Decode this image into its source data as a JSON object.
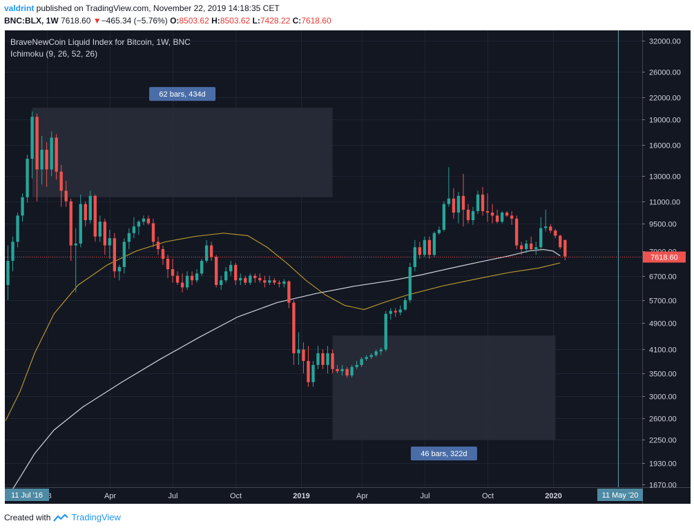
{
  "header": {
    "user": "valdrint",
    "published_text": " published on TradingView.com, November 22, 2019 14:18:35 CET",
    "symbol": "BNC:BLX, 1W",
    "last": "7618.60",
    "arrow": "▼",
    "change": "−465.34 (−5.76%)",
    "o_label": "O:",
    "o_value": "8503.62",
    "h_label": "H:",
    "h_value": "8503.62",
    "l_label": "L:",
    "l_value": "7428.22",
    "c_label": "C:",
    "c_value": "7618.60"
  },
  "footer": {
    "created_with": "Created with",
    "brand": "TradingView"
  },
  "colors": {
    "background": "#131722",
    "up": "#26a69a",
    "down": "#ef5350",
    "sma_white": "#d1d4dc",
    "sma_gold": "#b2952f",
    "price_line": "#ef5350",
    "box": "#2a2e39",
    "label_bg": "#4a6da7"
  },
  "chart_data": {
    "type": "candlestick",
    "title": "BraveNewCoin Liquid Index for Bitcoin, 1W, BNC",
    "indicator": "Ichimoku (9, 26, 52, 26)",
    "y_scale": "log",
    "ylim": [
      1670,
      34000
    ],
    "y_ticks": [
      32000,
      26000,
      22000,
      19000,
      16000,
      13000,
      11000,
      9500,
      7900,
      6700,
      5700,
      4900,
      4100,
      3500,
      3000,
      2600,
      2250,
      1930,
      1670
    ],
    "y_tick_labels": [
      "32000.00",
      "26000.00",
      "22000.00",
      "19000.00",
      "16000.00",
      "13000.00",
      "11000.00",
      "9500.00",
      "7900.00",
      "6700.00",
      "5700.00",
      "4900.00",
      "4100.00",
      "3500.00",
      "3000.00",
      "2600.00",
      "2250.00",
      "1930.00",
      "1670.00"
    ],
    "x_ticks": [
      "18",
      "Apr",
      "Jul",
      "Oct",
      "2019",
      "Apr",
      "Jul",
      "Oct",
      "2020"
    ],
    "x_tick_weeks": [
      8.5,
      21.5,
      34.5,
      47.5,
      61,
      73.5,
      86.5,
      99.5,
      113
    ],
    "x_range_weeks": [
      0,
      130
    ],
    "x_start_label": "11 Jul '16",
    "x_end_label": "11 May '20",
    "current_price_label": "7618.60",
    "ranges": [
      {
        "label": "62 bars, 434d",
        "week_start": 5.5,
        "week_end": 67.5,
        "price_low": 11300,
        "price_high": 20500,
        "label_pos": "top"
      },
      {
        "label": "46 bars, 322d",
        "week_start": 67.5,
        "week_end": 113.5,
        "price_low": 2250,
        "price_high": 4500,
        "label_pos": "bottom"
      }
    ],
    "candles": [
      {
        "o": 6300,
        "h": 8200,
        "l": 5700,
        "c": 7400
      },
      {
        "o": 7400,
        "h": 8700,
        "l": 6900,
        "c": 8400
      },
      {
        "o": 8400,
        "h": 10200,
        "l": 8100,
        "c": 10000
      },
      {
        "o": 10000,
        "h": 11600,
        "l": 9600,
        "c": 11300
      },
      {
        "o": 11300,
        "h": 15000,
        "l": 10900,
        "c": 14600
      },
      {
        "o": 14600,
        "h": 20000,
        "l": 12800,
        "c": 19300
      },
      {
        "o": 19300,
        "h": 19700,
        "l": 11000,
        "c": 13600
      },
      {
        "o": 13600,
        "h": 17000,
        "l": 12300,
        "c": 15500
      },
      {
        "o": 15500,
        "h": 16300,
        "l": 12100,
        "c": 13600
      },
      {
        "o": 13600,
        "h": 17500,
        "l": 13000,
        "c": 16800
      },
      {
        "o": 16800,
        "h": 17200,
        "l": 12700,
        "c": 13400
      },
      {
        "o": 13400,
        "h": 14000,
        "l": 10600,
        "c": 11800
      },
      {
        "o": 11800,
        "h": 12600,
        "l": 10600,
        "c": 11000
      },
      {
        "o": 11000,
        "h": 11200,
        "l": 7400,
        "c": 8200
      },
      {
        "o": 8200,
        "h": 9200,
        "l": 6000,
        "c": 8300
      },
      {
        "o": 8300,
        "h": 11500,
        "l": 8100,
        "c": 10800
      },
      {
        "o": 10800,
        "h": 11000,
        "l": 9300,
        "c": 9700
      },
      {
        "o": 9700,
        "h": 11800,
        "l": 9500,
        "c": 11400
      },
      {
        "o": 11400,
        "h": 11500,
        "l": 8400,
        "c": 8700
      },
      {
        "o": 8700,
        "h": 10000,
        "l": 8400,
        "c": 9600
      },
      {
        "o": 9600,
        "h": 9800,
        "l": 7700,
        "c": 8200
      },
      {
        "o": 8200,
        "h": 9100,
        "l": 7500,
        "c": 8600
      },
      {
        "o": 8600,
        "h": 8900,
        "l": 6600,
        "c": 6900
      },
      {
        "o": 6900,
        "h": 7200,
        "l": 6500,
        "c": 7100
      },
      {
        "o": 7100,
        "h": 8600,
        "l": 6800,
        "c": 8400
      },
      {
        "o": 8400,
        "h": 9200,
        "l": 8000,
        "c": 8900
      },
      {
        "o": 8900,
        "h": 9900,
        "l": 8600,
        "c": 9300
      },
      {
        "o": 9300,
        "h": 9700,
        "l": 8800,
        "c": 9600
      },
      {
        "o": 9600,
        "h": 10000,
        "l": 9400,
        "c": 9800
      },
      {
        "o": 9800,
        "h": 10000,
        "l": 9400,
        "c": 9500
      },
      {
        "o": 9500,
        "h": 9800,
        "l": 8100,
        "c": 8400
      },
      {
        "o": 8400,
        "h": 8700,
        "l": 7700,
        "c": 8000
      },
      {
        "o": 8000,
        "h": 8200,
        "l": 7200,
        "c": 7500
      },
      {
        "o": 7500,
        "h": 7700,
        "l": 6600,
        "c": 7000
      },
      {
        "o": 7000,
        "h": 7500,
        "l": 6400,
        "c": 6700
      },
      {
        "o": 6700,
        "h": 6900,
        "l": 6300,
        "c": 6400
      },
      {
        "o": 6400,
        "h": 6800,
        "l": 6000,
        "c": 6200
      },
      {
        "o": 6200,
        "h": 6900,
        "l": 6100,
        "c": 6700
      },
      {
        "o": 6700,
        "h": 6900,
        "l": 6300,
        "c": 6500
      },
      {
        "o": 6500,
        "h": 7000,
        "l": 6400,
        "c": 6800
      },
      {
        "o": 6800,
        "h": 7500,
        "l": 6700,
        "c": 7400
      },
      {
        "o": 7400,
        "h": 8500,
        "l": 7300,
        "c": 8200
      },
      {
        "o": 8200,
        "h": 8400,
        "l": 7400,
        "c": 7600
      },
      {
        "o": 7600,
        "h": 7700,
        "l": 6200,
        "c": 6300
      },
      {
        "o": 6300,
        "h": 6700,
        "l": 6100,
        "c": 6500
      },
      {
        "o": 6500,
        "h": 7100,
        "l": 6400,
        "c": 6900
      },
      {
        "o": 6900,
        "h": 7400,
        "l": 6700,
        "c": 7200
      },
      {
        "o": 7200,
        "h": 7300,
        "l": 6300,
        "c": 6500
      },
      {
        "o": 6500,
        "h": 6800,
        "l": 6300,
        "c": 6600
      },
      {
        "o": 6600,
        "h": 6700,
        "l": 6300,
        "c": 6400
      },
      {
        "o": 6400,
        "h": 6800,
        "l": 6300,
        "c": 6700
      },
      {
        "o": 6700,
        "h": 6800,
        "l": 6400,
        "c": 6600
      },
      {
        "o": 6600,
        "h": 6800,
        "l": 6400,
        "c": 6500
      },
      {
        "o": 6500,
        "h": 6700,
        "l": 6200,
        "c": 6400
      },
      {
        "o": 6400,
        "h": 6700,
        "l": 6300,
        "c": 6500
      },
      {
        "o": 6500,
        "h": 6600,
        "l": 6300,
        "c": 6400
      },
      {
        "o": 6400,
        "h": 6500,
        "l": 6200,
        "c": 6350
      },
      {
        "o": 6350,
        "h": 6550,
        "l": 6200,
        "c": 6450
      },
      {
        "o": 6450,
        "h": 6500,
        "l": 5400,
        "c": 5600
      },
      {
        "o": 5600,
        "h": 5700,
        "l": 3700,
        "c": 4000
      },
      {
        "o": 4000,
        "h": 4600,
        "l": 3700,
        "c": 4100
      },
      {
        "o": 4100,
        "h": 4300,
        "l": 3500,
        "c": 3800
      },
      {
        "o": 3800,
        "h": 4200,
        "l": 3200,
        "c": 3300
      },
      {
        "o": 3300,
        "h": 3800,
        "l": 3200,
        "c": 3700
      },
      {
        "o": 3700,
        "h": 4200,
        "l": 3600,
        "c": 4000
      },
      {
        "o": 4000,
        "h": 4100,
        "l": 3600,
        "c": 3700
      },
      {
        "o": 3700,
        "h": 4200,
        "l": 3500,
        "c": 4000
      },
      {
        "o": 4000,
        "h": 4100,
        "l": 3500,
        "c": 3600
      },
      {
        "o": 3600,
        "h": 3700,
        "l": 3500,
        "c": 3550
      },
      {
        "o": 3550,
        "h": 3700,
        "l": 3450,
        "c": 3600
      },
      {
        "o": 3600,
        "h": 3650,
        "l": 3400,
        "c": 3450
      },
      {
        "o": 3450,
        "h": 3700,
        "l": 3400,
        "c": 3650
      },
      {
        "o": 3650,
        "h": 3800,
        "l": 3600,
        "c": 3700
      },
      {
        "o": 3700,
        "h": 3900,
        "l": 3650,
        "c": 3850
      },
      {
        "o": 3850,
        "h": 3950,
        "l": 3800,
        "c": 3900
      },
      {
        "o": 3900,
        "h": 4000,
        "l": 3850,
        "c": 3950
      },
      {
        "o": 3950,
        "h": 4100,
        "l": 3900,
        "c": 4050
      },
      {
        "o": 4050,
        "h": 4150,
        "l": 3950,
        "c": 4100
      },
      {
        "o": 4100,
        "h": 5300,
        "l": 4050,
        "c": 5200
      },
      {
        "o": 5200,
        "h": 5400,
        "l": 5000,
        "c": 5300
      },
      {
        "o": 5300,
        "h": 5400,
        "l": 5100,
        "c": 5250
      },
      {
        "o": 5250,
        "h": 5500,
        "l": 5150,
        "c": 5350
      },
      {
        "o": 5350,
        "h": 5800,
        "l": 5300,
        "c": 5700
      },
      {
        "o": 5700,
        "h": 7300,
        "l": 5600,
        "c": 7100
      },
      {
        "o": 7100,
        "h": 8500,
        "l": 6900,
        "c": 8100
      },
      {
        "o": 8100,
        "h": 8400,
        "l": 7500,
        "c": 7700
      },
      {
        "o": 7700,
        "h": 8700,
        "l": 7600,
        "c": 8500
      },
      {
        "o": 8500,
        "h": 8700,
        "l": 7500,
        "c": 7700
      },
      {
        "o": 7700,
        "h": 9000,
        "l": 7600,
        "c": 8900
      },
      {
        "o": 8900,
        "h": 9300,
        "l": 8800,
        "c": 9100
      },
      {
        "o": 9100,
        "h": 11000,
        "l": 9000,
        "c": 10800
      },
      {
        "o": 10800,
        "h": 13800,
        "l": 10600,
        "c": 11200
      },
      {
        "o": 11200,
        "h": 12000,
        "l": 9800,
        "c": 10200
      },
      {
        "o": 10200,
        "h": 11700,
        "l": 9500,
        "c": 11400
      },
      {
        "o": 11400,
        "h": 13200,
        "l": 9300,
        "c": 10400
      },
      {
        "o": 10400,
        "h": 10800,
        "l": 9500,
        "c": 9700
      },
      {
        "o": 9700,
        "h": 10600,
        "l": 9400,
        "c": 10300
      },
      {
        "o": 10300,
        "h": 11800,
        "l": 10100,
        "c": 11500
      },
      {
        "o": 11500,
        "h": 12100,
        "l": 10000,
        "c": 10300
      },
      {
        "o": 10300,
        "h": 11600,
        "l": 9600,
        "c": 10200
      },
      {
        "o": 10200,
        "h": 10800,
        "l": 9500,
        "c": 10000
      },
      {
        "o": 10000,
        "h": 10400,
        "l": 9500,
        "c": 9600
      },
      {
        "o": 9600,
        "h": 10300,
        "l": 9500,
        "c": 10200
      },
      {
        "o": 10200,
        "h": 10300,
        "l": 9900,
        "c": 10000
      },
      {
        "o": 10000,
        "h": 10300,
        "l": 9400,
        "c": 9800
      },
      {
        "o": 9800,
        "h": 10000,
        "l": 8000,
        "c": 8200
      },
      {
        "o": 8200,
        "h": 8400,
        "l": 7700,
        "c": 8000
      },
      {
        "o": 8000,
        "h": 8500,
        "l": 7800,
        "c": 8300
      },
      {
        "o": 8300,
        "h": 8700,
        "l": 7900,
        "c": 8000
      },
      {
        "o": 8000,
        "h": 8400,
        "l": 7700,
        "c": 8100
      },
      {
        "o": 8100,
        "h": 9900,
        "l": 8000,
        "c": 9200
      },
      {
        "o": 9200,
        "h": 10400,
        "l": 9000,
        "c": 9300
      },
      {
        "o": 9300,
        "h": 9450,
        "l": 8900,
        "c": 9050
      },
      {
        "o": 9050,
        "h": 9150,
        "l": 8600,
        "c": 8750
      },
      {
        "o": 8750,
        "h": 8800,
        "l": 8000,
        "c": 8100
      },
      {
        "o": 8503.62,
        "h": 8503.62,
        "l": 7428.22,
        "c": 7618.6
      }
    ],
    "sma_white": [
      {
        "w": 0,
        "v": 1500
      },
      {
        "w": 3,
        "v": 1750
      },
      {
        "w": 6,
        "v": 2050
      },
      {
        "w": 10,
        "v": 2400
      },
      {
        "w": 16,
        "v": 2800
      },
      {
        "w": 24,
        "v": 3300
      },
      {
        "w": 32,
        "v": 3850
      },
      {
        "w": 40,
        "v": 4450
      },
      {
        "w": 48,
        "v": 5100
      },
      {
        "w": 56,
        "v": 5600
      },
      {
        "w": 64,
        "v": 5950
      },
      {
        "w": 72,
        "v": 6250
      },
      {
        "w": 80,
        "v": 6500
      },
      {
        "w": 86,
        "v": 6750
      },
      {
        "w": 92,
        "v": 7050
      },
      {
        "w": 98,
        "v": 7350
      },
      {
        "w": 104,
        "v": 7650
      },
      {
        "w": 108,
        "v": 7900
      },
      {
        "w": 111,
        "v": 7980
      },
      {
        "w": 113,
        "v": 7900
      },
      {
        "w": 114.5,
        "v": 7650
      }
    ],
    "sma_gold": [
      {
        "w": 0,
        "v": 2550
      },
      {
        "w": 3,
        "v": 3100
      },
      {
        "w": 6,
        "v": 4000
      },
      {
        "w": 10,
        "v": 5200
      },
      {
        "w": 15,
        "v": 6300
      },
      {
        "w": 21,
        "v": 7200
      },
      {
        "w": 27,
        "v": 7900
      },
      {
        "w": 33,
        "v": 8400
      },
      {
        "w": 39,
        "v": 8700
      },
      {
        "w": 45,
        "v": 8900
      },
      {
        "w": 50,
        "v": 8750
      },
      {
        "w": 54,
        "v": 8100
      },
      {
        "w": 58,
        "v": 7300
      },
      {
        "w": 62,
        "v": 6500
      },
      {
        "w": 66,
        "v": 5900
      },
      {
        "w": 70,
        "v": 5500
      },
      {
        "w": 74,
        "v": 5350
      },
      {
        "w": 78,
        "v": 5600
      },
      {
        "w": 83,
        "v": 5900
      },
      {
        "w": 90,
        "v": 6250
      },
      {
        "w": 97,
        "v": 6550
      },
      {
        "w": 104,
        "v": 6850
      },
      {
        "w": 110,
        "v": 7050
      },
      {
        "w": 114.5,
        "v": 7300
      }
    ]
  }
}
